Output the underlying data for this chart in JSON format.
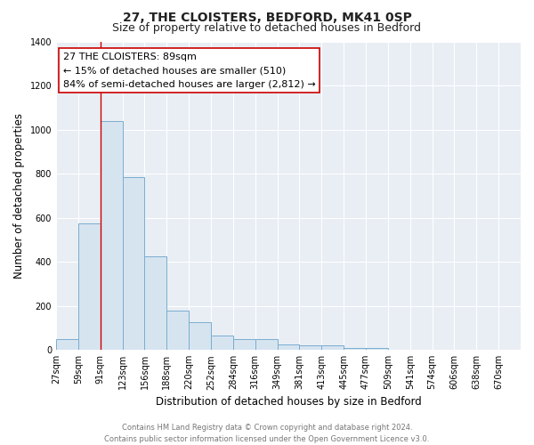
{
  "title": "27, THE CLOISTERS, BEDFORD, MK41 0SP",
  "subtitle": "Size of property relative to detached houses in Bedford",
  "xlabel": "Distribution of detached houses by size in Bedford",
  "ylabel": "Number of detached properties",
  "bin_labels": [
    "27sqm",
    "59sqm",
    "91sqm",
    "123sqm",
    "156sqm",
    "188sqm",
    "220sqm",
    "252sqm",
    "284sqm",
    "316sqm",
    "349sqm",
    "381sqm",
    "413sqm",
    "445sqm",
    "477sqm",
    "509sqm",
    "541sqm",
    "574sqm",
    "606sqm",
    "638sqm",
    "670sqm"
  ],
  "bar_heights": [
    50,
    575,
    1040,
    785,
    425,
    180,
    125,
    65,
    50,
    50,
    25,
    20,
    20,
    10,
    10,
    0,
    0,
    0,
    0,
    0,
    0
  ],
  "bar_color": "#d6e4f0",
  "bar_edge_color": "#7aadcf",
  "vline_color": "#cc0000",
  "ylim": [
    0,
    1400
  ],
  "yticks": [
    0,
    200,
    400,
    600,
    800,
    1000,
    1200,
    1400
  ],
  "ann_line1": "27 THE CLOISTERS: 89sqm",
  "ann_line2": "← 15% of detached houses are smaller (510)",
  "ann_line3": "84% of semi-detached houses are larger (2,812) →",
  "footer_line1": "Contains HM Land Registry data © Crown copyright and database right 2024.",
  "footer_line2": "Contains public sector information licensed under the Open Government Licence v3.0.",
  "fig_bg": "#ffffff",
  "plot_bg": "#e8eef4",
  "grid_color": "#ffffff",
  "title_fontsize": 10,
  "subtitle_fontsize": 9,
  "axis_label_fontsize": 8.5,
  "tick_fontsize": 7,
  "footer_fontsize": 6,
  "ann_fontsize": 8
}
